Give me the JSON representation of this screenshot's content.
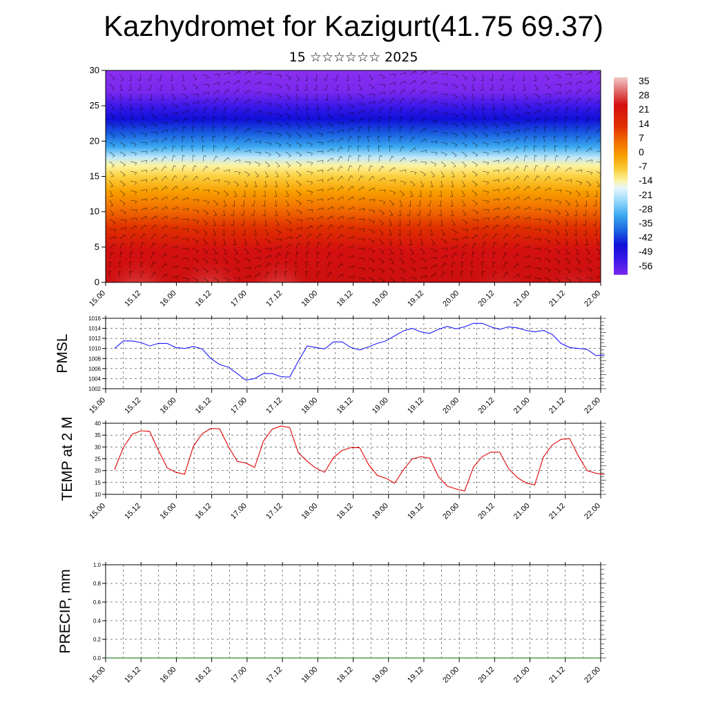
{
  "title": "Kazhydromet for Kazigurt(41.75 69.37)",
  "subtitle": "15 ☆☆☆☆☆☆ 2025",
  "time_labels": [
    "15.00",
    "15.12",
    "16.00",
    "16.12",
    "17.00",
    "17.12",
    "18.00",
    "18.12",
    "19.00",
    "19.12",
    "20.00",
    "20.12",
    "21.00",
    "21.12",
    "22.00"
  ],
  "colors": {
    "pmsl_line": "#1a1aff",
    "temp_line": "#e00000",
    "precip_line": "#006400",
    "colorbar": [
      "#f3c8c8",
      "#e06a6a",
      "#d41010",
      "#e03000",
      "#f06a00",
      "#f8a000",
      "#fbd040",
      "#fbf3a0",
      "#e8f4fb",
      "#9fdcfa",
      "#3aa8f0",
      "#1a60e0",
      "#1010d8",
      "#3a18e8",
      "#7a28ee"
    ]
  },
  "chart_data": [
    {
      "type": "heatmap",
      "name": "upper-panel",
      "ylim": [
        0,
        30
      ],
      "y_ticks": [
        0,
        5,
        10,
        15,
        20,
        25,
        30
      ],
      "colorbar_labels": [
        "35",
        "28",
        "21",
        "14",
        "7",
        "0",
        "-7",
        "-14",
        "-21",
        "-28",
        "-35",
        "-42",
        "-49",
        "-56"
      ],
      "value_range": [
        -60,
        38
      ]
    },
    {
      "type": "line",
      "ylabel": "PMSL",
      "ylim": [
        1002,
        1016
      ],
      "y_ticks": [
        1002,
        1004,
        1006,
        1008,
        1010,
        1012,
        1014,
        1016
      ],
      "values": [
        1010.0,
        1011.5,
        1011.5,
        1011.2,
        1010.5,
        1011.0,
        1011.0,
        1010.2,
        1010.0,
        1010.4,
        1009.9,
        1008.0,
        1006.8,
        1006.3,
        1005.0,
        1003.7,
        1004.0,
        1005.0,
        1005.0,
        1004.4,
        1004.3,
        1007.5,
        1010.5,
        1010.2,
        1009.9,
        1011.3,
        1011.3,
        1010.2,
        1009.7,
        1010.3,
        1011.0,
        1011.5,
        1012.5,
        1013.5,
        1014.0,
        1013.3,
        1013.0,
        1013.8,
        1014.4,
        1013.9,
        1014.3,
        1015.0,
        1015.0,
        1014.3,
        1013.8,
        1014.3,
        1014.1,
        1013.6,
        1013.3,
        1013.6,
        1012.8,
        1011.0,
        1010.2,
        1010.0,
        1009.8,
        1008.6,
        1008.7
      ]
    },
    {
      "type": "line",
      "ylabel": "TEMP at 2 M",
      "ylim": [
        10,
        40
      ],
      "y_ticks": [
        10,
        15,
        20,
        25,
        30,
        35,
        40
      ],
      "values": [
        20.5,
        29.8,
        35.3,
        36.8,
        36.6,
        28.6,
        21.2,
        19.3,
        18.5,
        30.3,
        35.6,
        37.8,
        37.6,
        30.2,
        23.9,
        23.2,
        21.4,
        32.4,
        37.5,
        38.8,
        38.2,
        27.5,
        24.0,
        21.0,
        19.3,
        25.5,
        28.5,
        29.7,
        29.7,
        22.7,
        18.0,
        16.8,
        14.7,
        20.4,
        24.9,
        25.9,
        25.3,
        17.5,
        13.5,
        12.3,
        11.4,
        21.5,
        25.9,
        27.8,
        27.8,
        20.9,
        17.1,
        14.8,
        14.0,
        25.8,
        30.8,
        33.2,
        33.5,
        26.1,
        20.0,
        18.9,
        18.4
      ]
    },
    {
      "type": "line",
      "ylabel": "PRECIP, mm",
      "ylim": [
        0.0,
        1.0
      ],
      "y_ticks": [
        "0.0",
        "0.2",
        "0.4",
        "0.6",
        "0.8",
        "1.0"
      ],
      "values": [
        0,
        0,
        0,
        0,
        0,
        0,
        0,
        0,
        0,
        0,
        0,
        0,
        0,
        0,
        0,
        0,
        0,
        0,
        0,
        0,
        0,
        0,
        0,
        0,
        0,
        0,
        0,
        0,
        0,
        0,
        0,
        0,
        0,
        0,
        0,
        0,
        0,
        0,
        0,
        0,
        0,
        0,
        0,
        0,
        0,
        0,
        0,
        0,
        0,
        0,
        0,
        0,
        0,
        0,
        0,
        0,
        0
      ]
    }
  ]
}
